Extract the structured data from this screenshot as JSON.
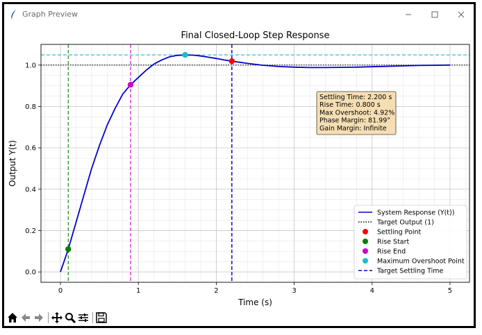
{
  "window": {
    "title": "Graph Preview"
  },
  "toolbar": {
    "icons": [
      "home-icon",
      "back-arrow-icon",
      "forward-arrow-icon",
      "pan-icon",
      "zoom-icon",
      "configure-subplots-icon",
      "save-icon"
    ]
  },
  "chart_data": {
    "type": "line",
    "title": "Final Closed-Loop Step Response",
    "xlabel": "Time (s)",
    "ylabel": "Output Y(t)",
    "xlim": [
      -0.25,
      5.25
    ],
    "ylim": [
      -0.05,
      1.1
    ],
    "xticks": [
      0,
      1,
      2,
      3,
      4,
      5
    ],
    "yticks": [
      0.0,
      0.2,
      0.4,
      0.6,
      0.8,
      1.0
    ],
    "xtick_labels": [
      "0",
      "1",
      "2",
      "3",
      "4",
      "5"
    ],
    "ytick_labels": [
      "0.0",
      "0.2",
      "0.4",
      "0.6",
      "0.8",
      "1.0"
    ],
    "grid": true,
    "series": [
      {
        "name": "System Response (Y(t))",
        "color": "#0000cc",
        "x": [
          0,
          0.1,
          0.2,
          0.3,
          0.4,
          0.5,
          0.6,
          0.7,
          0.8,
          0.9,
          1.0,
          1.1,
          1.2,
          1.3,
          1.4,
          1.5,
          1.6,
          1.7,
          1.8,
          1.9,
          2.0,
          2.1,
          2.2,
          2.4,
          2.6,
          2.8,
          3.0,
          3.2,
          3.4,
          3.6,
          3.8,
          4.0,
          4.2,
          4.4,
          4.6,
          4.8,
          5.0
        ],
        "y": [
          0.0,
          0.11,
          0.24,
          0.37,
          0.5,
          0.61,
          0.71,
          0.79,
          0.86,
          0.905,
          0.94,
          0.975,
          1.005,
          1.025,
          1.04,
          1.047,
          1.049,
          1.048,
          1.044,
          1.038,
          1.032,
          1.025,
          1.019,
          1.008,
          0.999,
          0.993,
          0.99,
          0.988,
          0.988,
          0.989,
          0.99,
          0.992,
          0.994,
          0.996,
          0.998,
          0.999,
          1.0
        ]
      }
    ],
    "reference_lines": [
      {
        "name": "Target Output (1)",
        "orientation": "horizontal",
        "value": 1.0,
        "color": "#000000",
        "style": "dotted"
      },
      {
        "orientation": "horizontal",
        "value": 1.049,
        "color": "#17becf",
        "style": "dashed"
      },
      {
        "orientation": "vertical",
        "value": 0.1,
        "color": "#008000",
        "style": "dashed"
      },
      {
        "orientation": "vertical",
        "value": 0.9,
        "color": "#cc00cc",
        "style": "dashed"
      },
      {
        "orientation": "vertical",
        "value": 2.2,
        "color": "#ff0000",
        "style": "dashed"
      },
      {
        "name": "Target Settling Time",
        "orientation": "vertical",
        "value": 2.2,
        "color": "#0000cc",
        "style": "dashed"
      }
    ],
    "points": [
      {
        "name": "Settling Point",
        "x": 2.2,
        "y": 1.019,
        "color": "#ff0000"
      },
      {
        "name": "Rise Start",
        "x": 0.1,
        "y": 0.11,
        "color": "#008000"
      },
      {
        "name": "Rise End",
        "x": 0.9,
        "y": 0.905,
        "color": "#cc00cc"
      },
      {
        "name": "Maximum Overshoot Point",
        "x": 1.6,
        "y": 1.049,
        "color": "#17becf"
      }
    ],
    "annotation": {
      "lines": [
        "Settling Time: 2.200 s",
        "Rise Time: 0.800 s",
        "Max Overshoot: 4.92%",
        "Phase Margin: 81.99°",
        "Gain Margin: Infinite"
      ],
      "background": "#f5deb3"
    },
    "legend": {
      "placement": "lower-right",
      "entries": [
        {
          "label": "System Response (Y(t))",
          "kind": "line",
          "color": "#0000cc",
          "style": "solid"
        },
        {
          "label": "Target Output (1)",
          "kind": "line",
          "color": "#000000",
          "style": "dotted"
        },
        {
          "label": "Settling Point",
          "kind": "marker",
          "color": "#ff0000"
        },
        {
          "label": "Rise Start",
          "kind": "marker",
          "color": "#008000"
        },
        {
          "label": "Rise End",
          "kind": "marker",
          "color": "#cc00cc"
        },
        {
          "label": "Maximum Overshoot Point",
          "kind": "marker",
          "color": "#17becf"
        },
        {
          "label": "Target Settling Time",
          "kind": "line",
          "color": "#0000cc",
          "style": "dashed"
        }
      ]
    }
  }
}
